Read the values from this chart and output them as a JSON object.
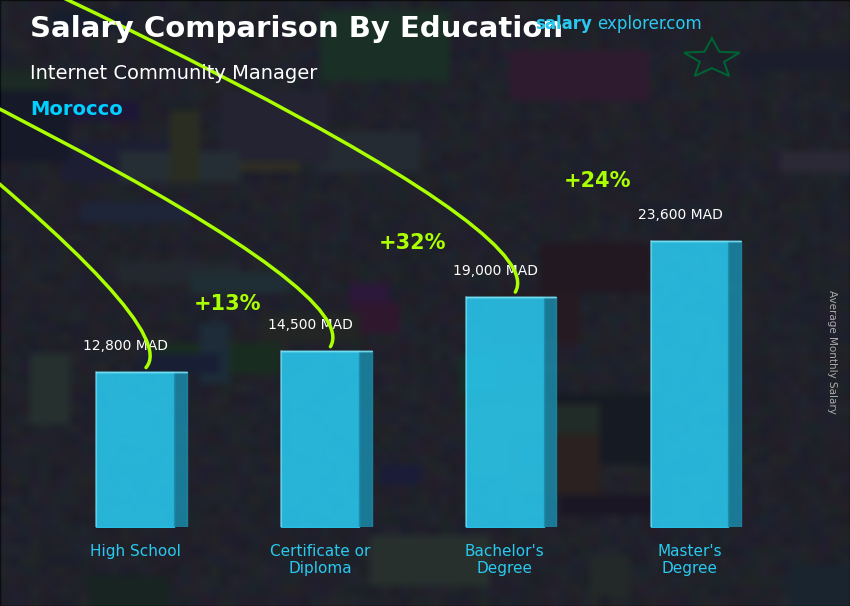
{
  "title_salary": "Salary Comparison By Education",
  "subtitle_job": "Internet Community Manager",
  "subtitle_country": "Morocco",
  "ylabel": "Average Monthly Salary",
  "categories": [
    "High School",
    "Certificate or\nDiploma",
    "Bachelor's\nDegree",
    "Master's\nDegree"
  ],
  "values": [
    12800,
    14500,
    19000,
    23600
  ],
  "value_labels": [
    "12,800 MAD",
    "14,500 MAD",
    "19,000 MAD",
    "23,600 MAD"
  ],
  "pct_labels": [
    "+13%",
    "+32%",
    "+24%"
  ],
  "pct_arcs": [
    {
      "from_bar": 0,
      "to_bar": 1,
      "pct": "+13%",
      "rad": -0.55
    },
    {
      "from_bar": 1,
      "to_bar": 2,
      "pct": "+32%",
      "rad": -0.55
    },
    {
      "from_bar": 2,
      "to_bar": 3,
      "pct": "+24%",
      "rad": -0.55
    }
  ],
  "bar_face_color": "#29c9f0",
  "bar_side_color": "#1a8aaa",
  "bar_top_color": "#7adeef",
  "bg_color": "#2a2d3e",
  "title_color": "#ffffff",
  "subtitle_job_color": "#ffffff",
  "subtitle_country_color": "#00cfff",
  "value_label_color": "#ffffff",
  "pct_color": "#aaff00",
  "arrow_color": "#aaff00",
  "xtick_color": "#29c9f0",
  "brand_salary_color": "#29c9f0",
  "brand_explorer_color": "#29c9f0",
  "brand_com_color": "#29c9f0",
  "ylabel_color": "#aaaaaa",
  "flag_bg": "#cc0001",
  "flag_star": "#006233",
  "ylim": [
    0,
    30000
  ],
  "figsize": [
    8.5,
    6.06
  ],
  "dpi": 100
}
